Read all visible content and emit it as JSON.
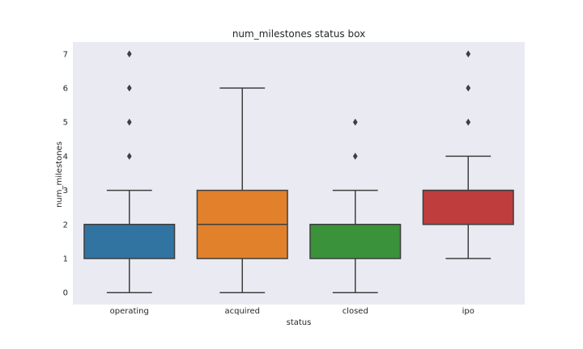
{
  "chart_data": {
    "type": "box",
    "title": "num_milestones status box",
    "xlabel": "status",
    "ylabel": "num_milestones",
    "categories": [
      "operating",
      "acquired",
      "closed",
      "ipo"
    ],
    "ylim": [
      -0.35,
      7.35
    ],
    "yticks": [
      0,
      1,
      2,
      3,
      4,
      5,
      6,
      7
    ],
    "grid": false,
    "background": "#eaeaf2",
    "boxes": [
      {
        "category": "operating",
        "whislo": 0,
        "q1": 1,
        "med": 2,
        "q3": 2,
        "whishi": 3,
        "fliers": [
          4,
          5,
          6,
          7
        ],
        "color": "#3274a1"
      },
      {
        "category": "acquired",
        "whislo": 0,
        "q1": 1,
        "med": 2,
        "q3": 3,
        "whishi": 6,
        "fliers": [],
        "color": "#e1812c"
      },
      {
        "category": "closed",
        "whislo": 0,
        "q1": 1,
        "med": 2,
        "q3": 2,
        "whishi": 3,
        "fliers": [
          4,
          5
        ],
        "color": "#3a923a"
      },
      {
        "category": "ipo",
        "whislo": 1,
        "q1": 2,
        "med": 3,
        "q3": 3,
        "whishi": 4,
        "fliers": [
          5,
          6,
          7
        ],
        "color": "#c03d3e"
      }
    ]
  }
}
